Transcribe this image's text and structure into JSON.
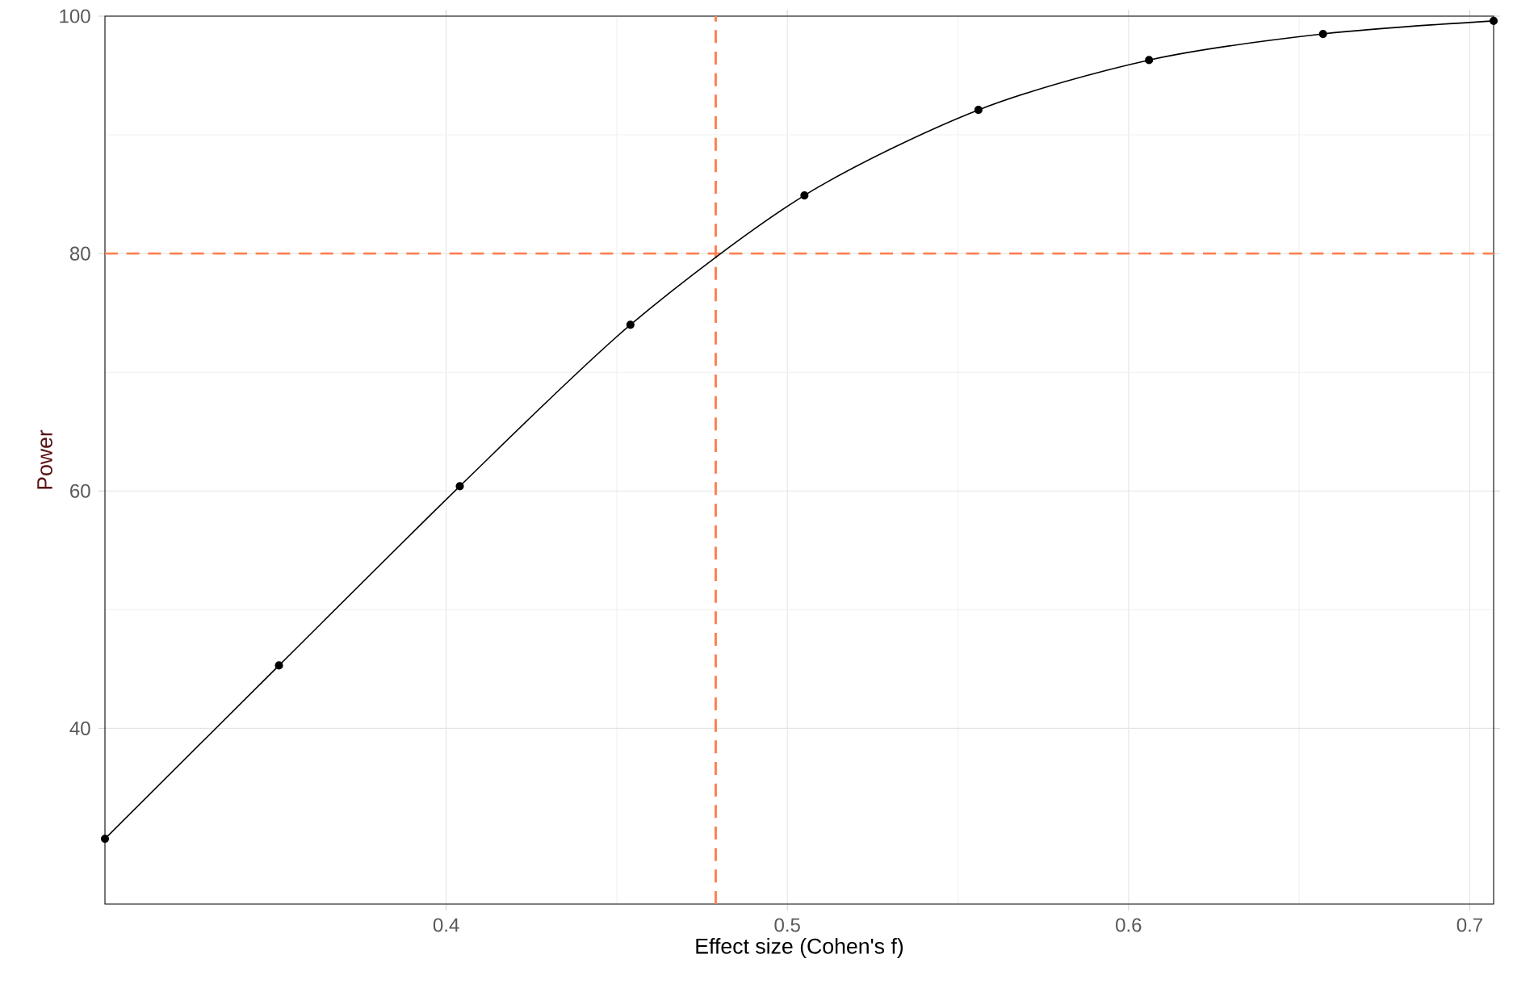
{
  "chart_data": {
    "type": "line",
    "xlabel": "Effect size (Cohen's f)",
    "ylabel": "Power",
    "x": [
      0.3,
      0.351,
      0.404,
      0.454,
      0.505,
      0.556,
      0.606,
      0.657,
      0.707
    ],
    "series": [
      {
        "color": "#000000",
        "values": [
          30.7,
          45.3,
          60.4,
          74.0,
          84.9,
          92.1,
          96.3,
          98.5,
          99.6
        ]
      }
    ],
    "xlim": [
      0.3,
      0.707
    ],
    "ylim": [
      25.2,
      100
    ],
    "xticks": [
      0.4,
      0.5,
      0.6,
      0.7
    ],
    "yticks": [
      40,
      60,
      80,
      100
    ],
    "ref_lines": [
      {
        "axis": "x",
        "value": 0.479,
        "color": "#ff7f50",
        "line_style": "dashed"
      },
      {
        "axis": "y",
        "value": 80,
        "color": "#ff7f50",
        "line_style": "dashed"
      }
    ],
    "grid": true,
    "marker": "circle",
    "line_style": "solid"
  }
}
